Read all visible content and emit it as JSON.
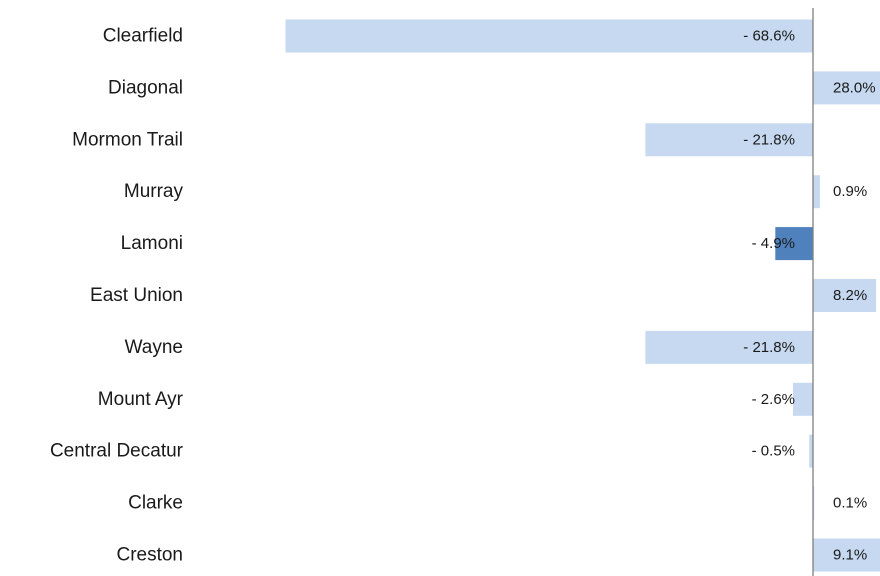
{
  "chart_data": {
    "type": "bar",
    "orientation": "horizontal",
    "categories": [
      "Clearfield",
      "Diagonal",
      "Mormon Trail",
      "Murray",
      "Lamoni",
      "East Union",
      "Wayne",
      "Mount Ayr",
      "Central Decatur",
      "Clarke",
      "Creston"
    ],
    "values": [
      -68.6,
      28.0,
      -21.8,
      0.9,
      -4.9,
      8.2,
      -21.8,
      -2.6,
      -0.5,
      0.1,
      9.1
    ],
    "value_labels": [
      "- 68.6%",
      "28.0%",
      "- 21.8%",
      "0.9%",
      "- 4.9%",
      "8.2%",
      "- 21.8%",
      "- 2.6%",
      "- 0.5%",
      "0.1%",
      "9.1%"
    ],
    "highlight": "Lamoni",
    "title": "",
    "xlabel": "",
    "ylabel": "",
    "grid": false,
    "legend": "none",
    "colors": {
      "bar": "#c6d9f0",
      "highlight": "#4f81bd",
      "axis": "#7f7f7f",
      "text": "#1a1a1a"
    }
  }
}
